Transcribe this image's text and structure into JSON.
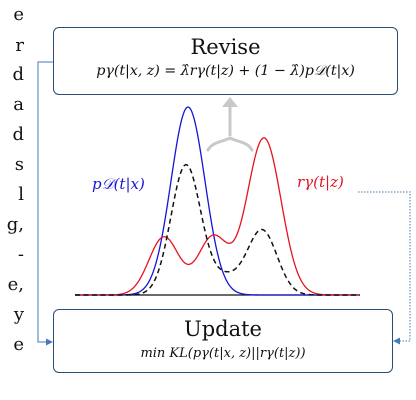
{
  "left_text": [
    "e",
    "r",
    "d",
    "a",
    "d",
    "s",
    "l",
    "g,",
    "-",
    "e,",
    "y",
    "e"
  ],
  "revise": {
    "title": "Revise",
    "formula": "pγ(t|x, z) = λ̂rγ(t|z) + (1 − λ̂)p𝒟(t|x)"
  },
  "update": {
    "title": "Update",
    "formula": "min KL(pγ(t|x, z)||rγ(t|z))"
  },
  "labels": {
    "p_data": "p𝒟(t|x)",
    "r_gamma": "rγ(t|z)"
  },
  "colors": {
    "p_data": "#1515d6",
    "r_gamma": "#e5131f",
    "p_gamma": "#111111",
    "box_border": "#2b4c74",
    "connector": "#4a78b8",
    "brace": "#c8c8c8"
  },
  "icons": [
    "up-arrow-icon",
    "brace-icon"
  ]
}
